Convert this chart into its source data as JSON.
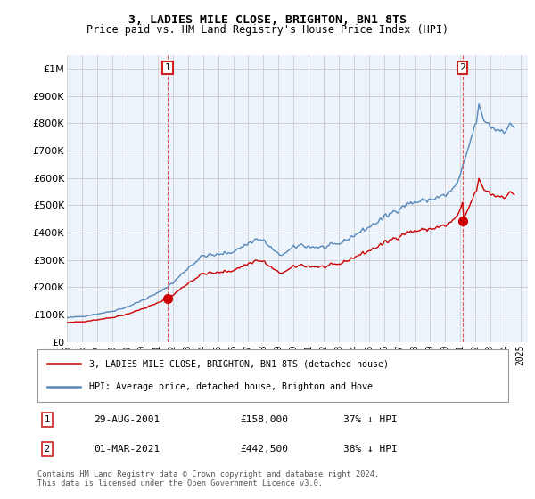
{
  "title": "3, LADIES MILE CLOSE, BRIGHTON, BN1 8TS",
  "subtitle": "Price paid vs. HM Land Registry's House Price Index (HPI)",
  "legend_property": "3, LADIES MILE CLOSE, BRIGHTON, BN1 8TS (detached house)",
  "legend_hpi": "HPI: Average price, detached house, Brighton and Hove",
  "footer_line1": "Contains HM Land Registry data © Crown copyright and database right 2024.",
  "footer_line2": "This data is licensed under the Open Government Licence v3.0.",
  "transaction1_date": "29-AUG-2001",
  "transaction1_price": "£158,000",
  "transaction1_hpi": "37% ↓ HPI",
  "transaction2_date": "01-MAR-2021",
  "transaction2_price": "£442,500",
  "transaction2_hpi": "38% ↓ HPI",
  "property_color": "#cc0000",
  "hpi_color": "#5588bb",
  "hpi_fill_color": "#ddeeff",
  "vline_color": "#dd4444",
  "grid_color": "#cccccc",
  "plot_bg_color": "#eef4fb",
  "background_color": "#ffffff",
  "p1_x": 2001.66,
  "p1_y": 158000,
  "p2_x": 2021.17,
  "p2_y": 442500,
  "xlim": [
    1995.0,
    2025.5
  ],
  "ylim": [
    0,
    1050000
  ],
  "xticks": [
    1995,
    1996,
    1997,
    1998,
    1999,
    2000,
    2001,
    2002,
    2003,
    2004,
    2005,
    2006,
    2007,
    2008,
    2009,
    2010,
    2011,
    2012,
    2013,
    2014,
    2015,
    2016,
    2017,
    2018,
    2019,
    2020,
    2021,
    2022,
    2023,
    2024,
    2025
  ],
  "yticks": [
    0,
    100000,
    200000,
    300000,
    400000,
    500000,
    600000,
    700000,
    800000,
    900000,
    1000000
  ]
}
